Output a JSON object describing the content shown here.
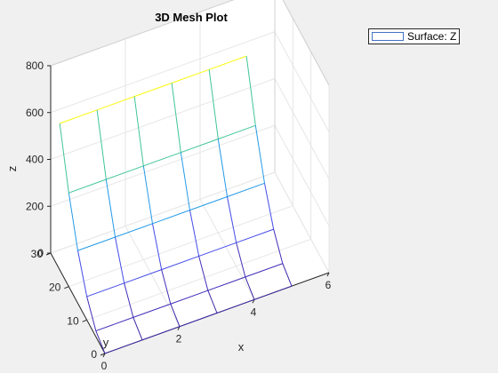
{
  "chart_data": {
    "type": "surface",
    "title": "3D Mesh Plot",
    "xlabel": "x",
    "ylabel": "y",
    "zlabel": "z",
    "xlim": [
      0,
      6
    ],
    "ylim": [
      0,
      30
    ],
    "zlim": [
      0,
      800
    ],
    "xticks": [
      "0",
      "2",
      "4",
      "6"
    ],
    "yticks": [
      "0",
      "10",
      "20",
      "30"
    ],
    "zticks": [
      "0",
      "200",
      "400",
      "600",
      "800"
    ],
    "grid": true,
    "legend": {
      "entries": [
        "Surface: Z"
      ],
      "placement": "top-right"
    },
    "x": [
      0,
      1,
      2,
      3,
      4,
      5
    ],
    "y": [
      0,
      5,
      10,
      15,
      20,
      25
    ],
    "z": [
      [
        0,
        0,
        0,
        0,
        0,
        0
      ],
      [
        25,
        25,
        25,
        25,
        25,
        25
      ],
      [
        100,
        100,
        100,
        100,
        100,
        100
      ],
      [
        225,
        225,
        225,
        225,
        225,
        225
      ],
      [
        400,
        400,
        400,
        400,
        400,
        400
      ],
      [
        625,
        625,
        625,
        625,
        625,
        625
      ]
    ],
    "colors": {
      "low": "#3e26a8",
      "mid": "#1aa7d6",
      "high": "#f9fb0e"
    }
  }
}
